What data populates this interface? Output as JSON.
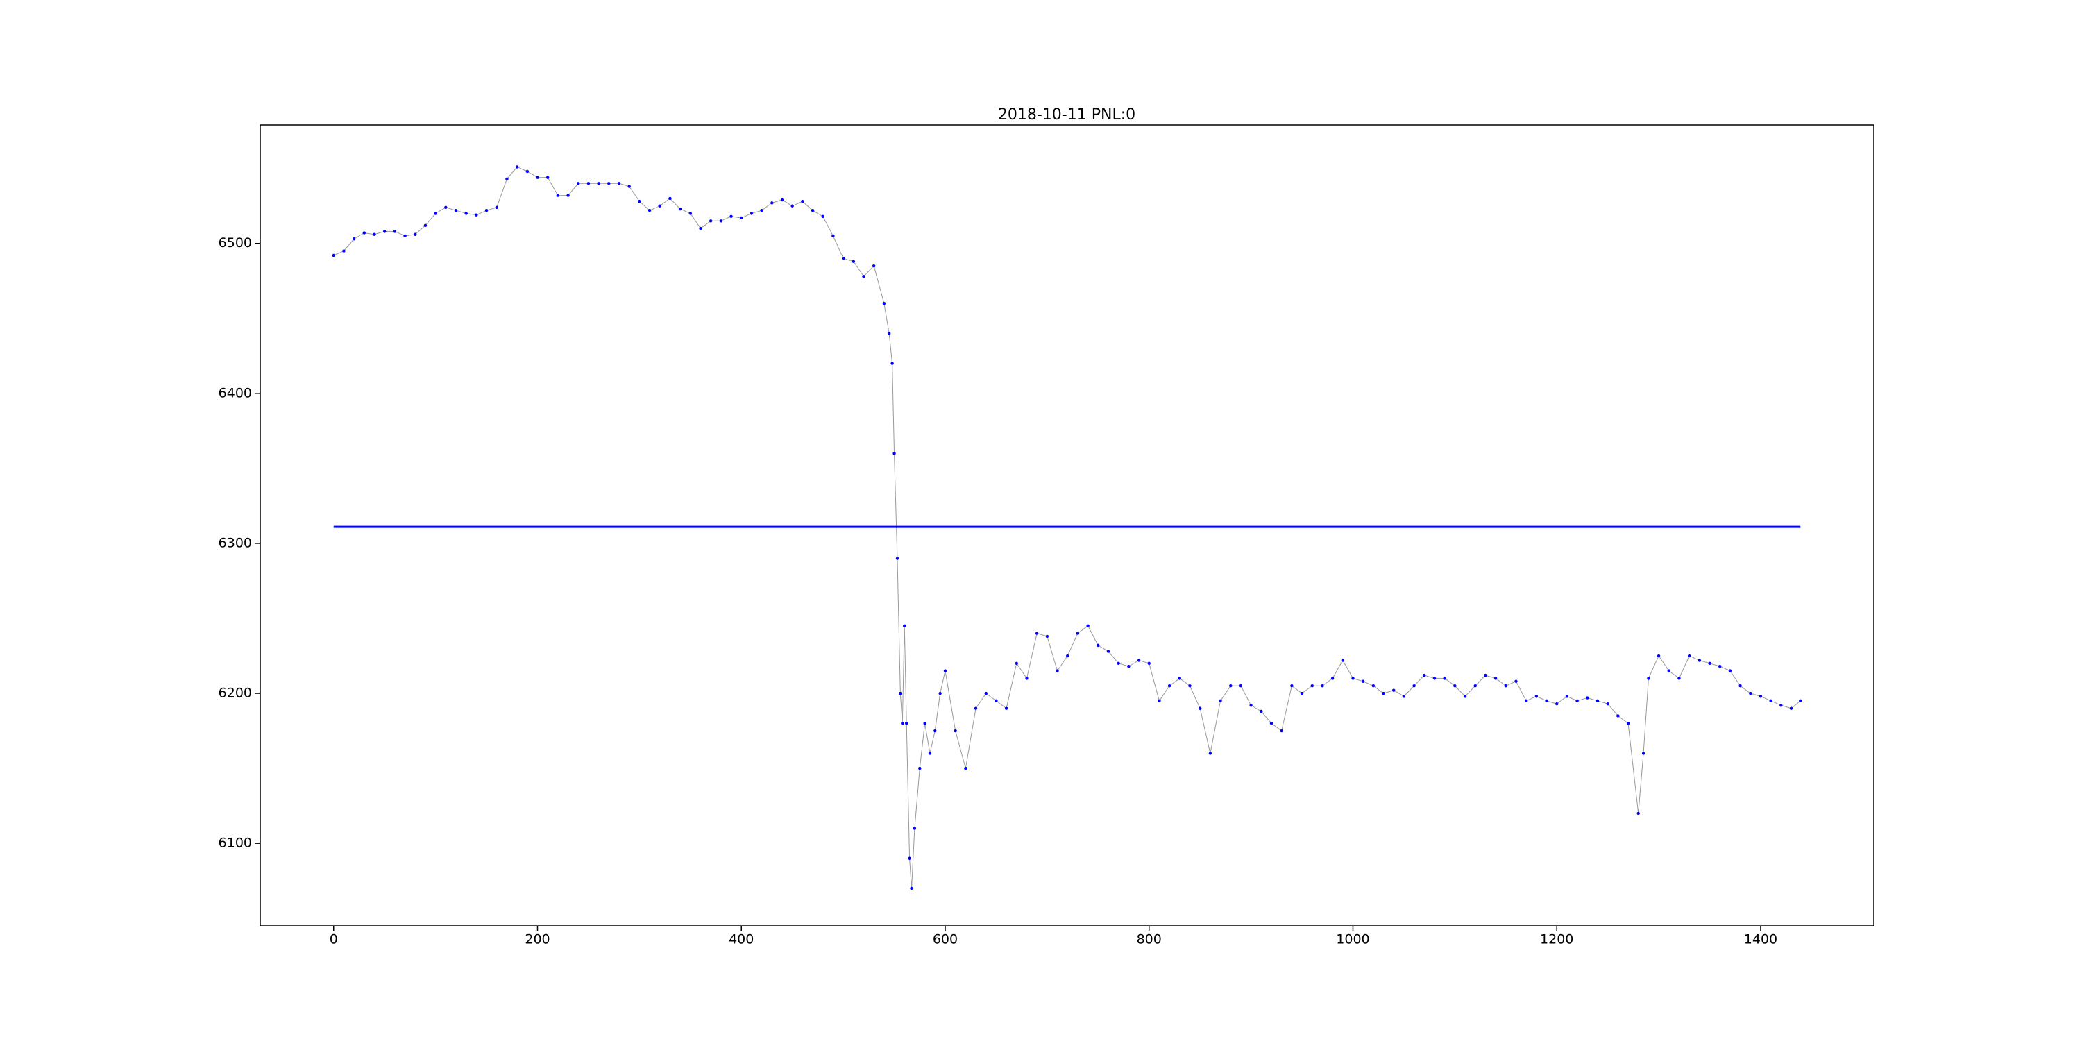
{
  "chart_data": {
    "type": "line",
    "title": "2018-10-11 PNL:0",
    "xlim": [
      -72,
      1511
    ],
    "xticks": [
      0,
      200,
      400,
      600,
      800,
      1000,
      1200,
      1400
    ],
    "ylim": [
      6045,
      6579
    ],
    "yticks": [
      6100,
      6200,
      6300,
      6400,
      6500
    ],
    "series": [
      {
        "color": "#999999",
        "marker_color": "#0000ff",
        "x": [
          0,
          10,
          20,
          30,
          40,
          50,
          60,
          70,
          80,
          90,
          100,
          110,
          120,
          130,
          140,
          150,
          160,
          170,
          180,
          190,
          200,
          210,
          220,
          230,
          240,
          250,
          260,
          270,
          280,
          290,
          300,
          310,
          320,
          330,
          340,
          350,
          360,
          370,
          380,
          390,
          400,
          410,
          420,
          430,
          440,
          450,
          460,
          470,
          480,
          490,
          500,
          510,
          520,
          530,
          540,
          545,
          548,
          550,
          553,
          556,
          558,
          560,
          562,
          565,
          567,
          570,
          575,
          580,
          585,
          590,
          595,
          600,
          610,
          620,
          630,
          640,
          650,
          660,
          670,
          680,
          690,
          700,
          710,
          720,
          730,
          740,
          750,
          760,
          770,
          780,
          790,
          800,
          810,
          820,
          830,
          840,
          850,
          860,
          870,
          880,
          890,
          900,
          910,
          920,
          930,
          940,
          950,
          960,
          970,
          980,
          990,
          1000,
          1010,
          1020,
          1030,
          1040,
          1050,
          1060,
          1070,
          1080,
          1090,
          1100,
          1110,
          1120,
          1130,
          1140,
          1150,
          1160,
          1170,
          1180,
          1190,
          1200,
          1210,
          1220,
          1230,
          1240,
          1250,
          1260,
          1270,
          1280,
          1285,
          1290,
          1300,
          1310,
          1320,
          1330,
          1340,
          1350,
          1360,
          1370,
          1380,
          1390,
          1400,
          1410,
          1420,
          1430,
          1439
        ],
        "values": [
          6492,
          6495,
          6503,
          6507,
          6506,
          6508,
          6508,
          6505,
          6506,
          6512,
          6520,
          6524,
          6522,
          6520,
          6519,
          6522,
          6524,
          6543,
          6551,
          6548,
          6544,
          6544,
          6532,
          6532,
          6540,
          6540,
          6540,
          6540,
          6540,
          6538,
          6528,
          6522,
          6525,
          6530,
          6523,
          6520,
          6510,
          6515,
          6515,
          6518,
          6517,
          6520,
          6522,
          6527,
          6529,
          6525,
          6528,
          6522,
          6518,
          6505,
          6490,
          6488,
          6478,
          6485,
          6460,
          6440,
          6420,
          6360,
          6290,
          6200,
          6180,
          6245,
          6180,
          6090,
          6070,
          6110,
          6150,
          6180,
          6160,
          6175,
          6200,
          6215,
          6175,
          6150,
          6190,
          6200,
          6195,
          6190,
          6220,
          6210,
          6240,
          6238,
          6215,
          6225,
          6240,
          6245,
          6232,
          6228,
          6220,
          6218,
          6222,
          6220,
          6195,
          6205,
          6210,
          6205,
          6190,
          6160,
          6195,
          6205,
          6205,
          6192,
          6188,
          6180,
          6175,
          6205,
          6200,
          6205,
          6205,
          6210,
          6222,
          6210,
          6208,
          6205,
          6200,
          6202,
          6198,
          6205,
          6212,
          6210,
          6210,
          6205,
          6198,
          6205,
          6212,
          6210,
          6205,
          6208,
          6195,
          6198,
          6195,
          6193,
          6198,
          6195,
          6197,
          6195,
          6193,
          6185,
          6180,
          6120,
          6160,
          6210,
          6225,
          6215,
          6210,
          6225,
          6222,
          6220,
          6218,
          6215,
          6205,
          6200,
          6198,
          6195,
          6192,
          6190,
          6195
        ]
      },
      {
        "color": "#0000ff",
        "x": [
          0,
          1439
        ],
        "values": [
          6311,
          6311
        ]
      }
    ]
  }
}
